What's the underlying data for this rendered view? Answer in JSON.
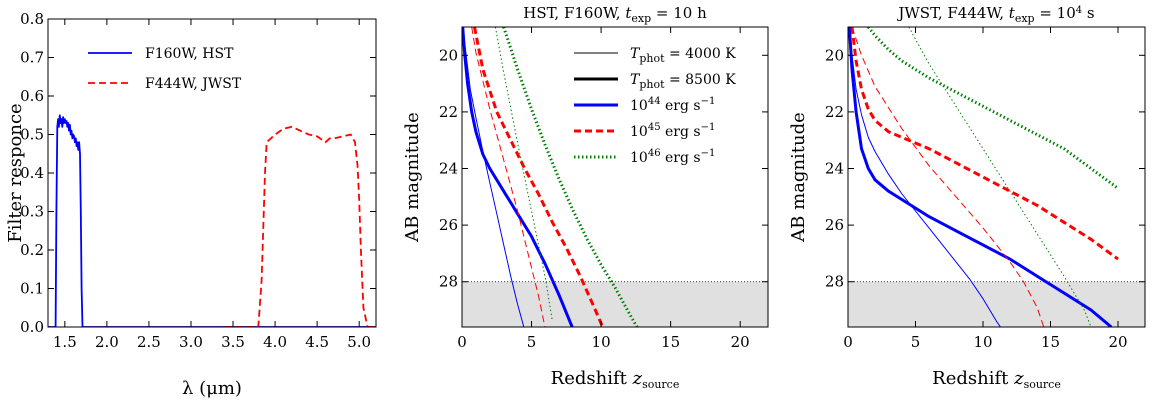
{
  "chart_data": [
    {
      "type": "line",
      "title": "",
      "xlabel": "λ (μm)",
      "ylabel": "Filter responce",
      "xlim": [
        1.3,
        5.2
      ],
      "ylim": [
        0.0,
        0.8
      ],
      "xticks": [
        "1.5",
        "2.0",
        "2.5",
        "3.0",
        "3.5",
        "4.0",
        "4.5",
        "5.0"
      ],
      "yticks": [
        "0.0",
        "0.1",
        "0.2",
        "0.3",
        "0.4",
        "0.5",
        "0.6",
        "0.7",
        "0.8"
      ],
      "legend_position": "top-left",
      "series": [
        {
          "name": "F160W, HST",
          "color": "#0000ff",
          "style": "solid",
          "x": [
            1.3,
            1.39,
            1.4,
            1.41,
            1.42,
            1.43,
            1.44,
            1.45,
            1.46,
            1.47,
            1.48,
            1.49,
            1.5,
            1.51,
            1.52,
            1.53,
            1.54,
            1.55,
            1.56,
            1.57,
            1.58,
            1.59,
            1.6,
            1.61,
            1.62,
            1.63,
            1.64,
            1.65,
            1.66,
            1.67,
            1.68,
            1.69,
            1.7,
            1.71,
            1.72,
            5.2
          ],
          "y": [
            0.0,
            0.0,
            0.3,
            0.52,
            0.54,
            0.52,
            0.55,
            0.53,
            0.54,
            0.52,
            0.545,
            0.53,
            0.54,
            0.53,
            0.535,
            0.52,
            0.53,
            0.51,
            0.525,
            0.5,
            0.51,
            0.49,
            0.5,
            0.495,
            0.48,
            0.49,
            0.47,
            0.48,
            0.46,
            0.48,
            0.45,
            0.3,
            0.1,
            0.0,
            0.0,
            0.0
          ]
        },
        {
          "name": "F444W, JWST",
          "color": "#ff0000",
          "style": "dashed",
          "x": [
            3.4,
            3.8,
            3.84,
            3.88,
            3.9,
            4.0,
            4.1,
            4.2,
            4.3,
            4.4,
            4.5,
            4.6,
            4.65,
            4.7,
            4.8,
            4.9,
            4.95,
            4.98,
            5.0,
            5.02,
            5.05,
            5.1,
            5.2
          ],
          "y": [
            0.0,
            0.0,
            0.12,
            0.4,
            0.48,
            0.5,
            0.515,
            0.52,
            0.51,
            0.5,
            0.495,
            0.48,
            0.49,
            0.49,
            0.495,
            0.5,
            0.48,
            0.42,
            0.33,
            0.2,
            0.05,
            0.0,
            0.0
          ]
        }
      ]
    },
    {
      "type": "line",
      "title": "HST, F160W, t_exp = 10 h",
      "title_parts": {
        "pre": "HST, F160W,",
        "t": "t",
        "sub": "exp",
        "post": "= 10 h"
      },
      "xlabel": "Redshift z_source",
      "xlabel_parts": {
        "pre": "Redshift",
        "z": "z",
        "sub": "source"
      },
      "ylabel": "AB magnitude",
      "xlim": [
        0,
        22
      ],
      "ylim": [
        29.6,
        19.0
      ],
      "xticks": [
        "0",
        "5",
        "10",
        "15",
        "20"
      ],
      "yticks": [
        "20",
        "22",
        "24",
        "26",
        "28"
      ],
      "detection_limit": 28,
      "legend_position": "top-right",
      "legend": [
        {
          "label_pre": "T",
          "label_sub": "phot",
          "label_post": "= 4000 K",
          "color": "#000000",
          "width": 1.0,
          "dash": ""
        },
        {
          "label_pre": "T",
          "label_sub": "phot",
          "label_post": "= 8500 K",
          "color": "#000000",
          "width": 3.0,
          "dash": ""
        },
        {
          "label_pre": "10",
          "label_sup": "44",
          "label_post": "erg s",
          "label_sup2": "−1",
          "color": "#0000ff",
          "width": 3.0,
          "dash": ""
        },
        {
          "label_pre": "10",
          "label_sup": "45",
          "label_post": "erg s",
          "label_sup2": "−1",
          "color": "#ff0000",
          "width": 3.0,
          "dash": "7,4"
        },
        {
          "label_pre": "10",
          "label_sup": "46",
          "label_post": "erg s",
          "label_sup2": "−1",
          "color": "#008000",
          "width": 3.0,
          "dash": "1.5,2.5"
        }
      ],
      "series": [
        {
          "lum": "1e44",
          "T": "4000",
          "color": "#0000ff",
          "width": 1.0,
          "dash": "",
          "x": [
            0.05,
            0.3,
            0.6,
            1.0,
            1.5,
            2.0,
            2.5,
            3.0,
            3.5,
            4.0,
            4.5
          ],
          "y": [
            19.0,
            20.0,
            21.2,
            22.2,
            23.4,
            24.5,
            25.6,
            26.7,
            27.8,
            28.8,
            29.7
          ]
        },
        {
          "lum": "1e44",
          "T": "8500",
          "color": "#0000ff",
          "width": 3.0,
          "dash": "",
          "x": [
            0.05,
            0.2,
            0.4,
            0.7,
            1.0,
            1.5,
            2.0,
            3.0,
            4.0,
            5.0,
            6.0,
            7.0,
            8.0
          ],
          "y": [
            19.0,
            20.0,
            21.0,
            22.0,
            22.7,
            23.5,
            24.0,
            24.8,
            25.6,
            26.4,
            27.4,
            28.5,
            29.7
          ]
        },
        {
          "lum": "1e45",
          "T": "4000",
          "color": "#ff0000",
          "width": 1.0,
          "dash": "7,4",
          "x": [
            0.7,
            1.0,
            2.0,
            3.0,
            4.0,
            5.0,
            5.5,
            6.0
          ],
          "y": [
            19.0,
            19.9,
            21.9,
            23.7,
            25.5,
            27.5,
            28.5,
            29.7
          ]
        },
        {
          "lum": "1e45",
          "T": "8500",
          "color": "#ff0000",
          "width": 3.0,
          "dash": "7,4",
          "x": [
            0.9,
            1.5,
            2.5,
            3.5,
            4.5,
            5.5,
            6.5,
            7.5,
            8.5,
            9.5,
            10.2
          ],
          "y": [
            19.0,
            20.5,
            22.0,
            23.0,
            24.0,
            24.9,
            25.9,
            26.8,
            27.8,
            28.9,
            29.7
          ]
        },
        {
          "lum": "1e46",
          "T": "4000",
          "color": "#008000",
          "width": 1.0,
          "dash": "1.5,2.5",
          "x": [
            2.4,
            3.0,
            4.0,
            5.0,
            6.0,
            6.5
          ],
          "y": [
            19.0,
            20.6,
            23.1,
            25.5,
            27.9,
            29.4
          ]
        },
        {
          "lum": "1e46",
          "T": "8500",
          "color": "#008000",
          "width": 3.0,
          "dash": "1.5,2.5",
          "x": [
            3.0,
            4.0,
            5.0,
            6.0,
            7.0,
            8.0,
            9.0,
            10.0,
            11.0,
            12.0,
            12.7
          ],
          "y": [
            19.0,
            20.5,
            21.9,
            23.2,
            24.4,
            25.5,
            26.5,
            27.4,
            28.2,
            29.1,
            29.7
          ]
        }
      ]
    },
    {
      "type": "line",
      "title": "JWST, F444W, t_exp = 10^4 s",
      "title_parts": {
        "pre": "JWST, F444W,",
        "t": "t",
        "sub": "exp",
        "mid": "= 10",
        "sup": "4",
        "post": "s"
      },
      "xlabel": "Redshift z_source",
      "xlabel_parts": {
        "pre": "Redshift",
        "z": "z",
        "sub": "source"
      },
      "ylabel": "AB magnitude",
      "xlim": [
        0,
        22
      ],
      "ylim": [
        29.6,
        19.0
      ],
      "xticks": [
        "0",
        "5",
        "10",
        "15",
        "20"
      ],
      "yticks": [
        "20",
        "22",
        "24",
        "26",
        "28"
      ],
      "detection_limit": 28,
      "series": [
        {
          "lum": "1e44",
          "T": "4000",
          "color": "#0000ff",
          "width": 1.0,
          "dash": "",
          "x": [
            0.1,
            0.3,
            0.6,
            1.0,
            1.5,
            2.0,
            3.0,
            4.0,
            5.0,
            6.0,
            7.0,
            8.0,
            9.0,
            10.0,
            11.0,
            11.3
          ],
          "y": [
            19.0,
            20.0,
            21.2,
            22.1,
            22.9,
            23.4,
            24.2,
            24.9,
            25.5,
            26.1,
            26.7,
            27.3,
            27.9,
            28.6,
            29.4,
            29.6
          ]
        },
        {
          "lum": "1e44",
          "T": "8500",
          "color": "#0000ff",
          "width": 3.0,
          "dash": "",
          "x": [
            0.1,
            0.3,
            0.6,
            1.0,
            1.5,
            2.0,
            3.0,
            4.0,
            6.0,
            8.0,
            10.0,
            12.0,
            14.0,
            16.0,
            18.0,
            19.5
          ],
          "y": [
            19.0,
            20.5,
            22.0,
            23.3,
            24.0,
            24.4,
            24.8,
            25.1,
            25.7,
            26.2,
            26.7,
            27.2,
            27.8,
            28.4,
            29.0,
            29.6
          ]
        },
        {
          "lum": "1e45",
          "T": "4000",
          "color": "#ff0000",
          "width": 1.0,
          "dash": "7,4",
          "x": [
            0.3,
            1.0,
            2.0,
            4.0,
            6.0,
            8.0,
            10.0,
            12.0,
            13.0,
            14.0,
            14.5
          ],
          "y": [
            19.0,
            20.0,
            21.1,
            22.6,
            23.9,
            25.0,
            26.1,
            27.3,
            28.0,
            28.9,
            29.6
          ]
        },
        {
          "lum": "1e45",
          "T": "8500",
          "color": "#ff0000",
          "width": 3.0,
          "dash": "7,4",
          "x": [
            0.3,
            0.6,
            1.0,
            1.5,
            2.0,
            3.0,
            4.0,
            6.0,
            8.0,
            10.0,
            12.0,
            14.0,
            16.0,
            18.0,
            20.0
          ],
          "y": [
            19.0,
            20.2,
            21.2,
            21.9,
            22.3,
            22.7,
            22.9,
            23.3,
            23.8,
            24.3,
            24.8,
            25.3,
            25.9,
            26.5,
            27.2
          ]
        },
        {
          "lum": "1e46",
          "T": "4000",
          "color": "#008000",
          "width": 1.0,
          "dash": "1.5,2.5",
          "x": [
            4.5,
            6.0,
            8.0,
            10.0,
            12.0,
            14.0,
            16.0,
            17.5,
            18.0
          ],
          "y": [
            19.0,
            20.3,
            21.8,
            23.3,
            24.8,
            26.3,
            27.8,
            29.0,
            29.6
          ]
        },
        {
          "lum": "1e46",
          "T": "8500",
          "color": "#008000",
          "width": 3.0,
          "dash": "1.5,2.5",
          "x": [
            1.5,
            2.0,
            3.0,
            4.0,
            5.0,
            6.0,
            8.0,
            10.0,
            12.0,
            14.0,
            16.0,
            18.0,
            20.0
          ],
          "y": [
            19.0,
            19.3,
            19.8,
            20.2,
            20.5,
            20.8,
            21.3,
            21.8,
            22.3,
            22.8,
            23.3,
            24.0,
            24.7
          ]
        }
      ]
    }
  ]
}
